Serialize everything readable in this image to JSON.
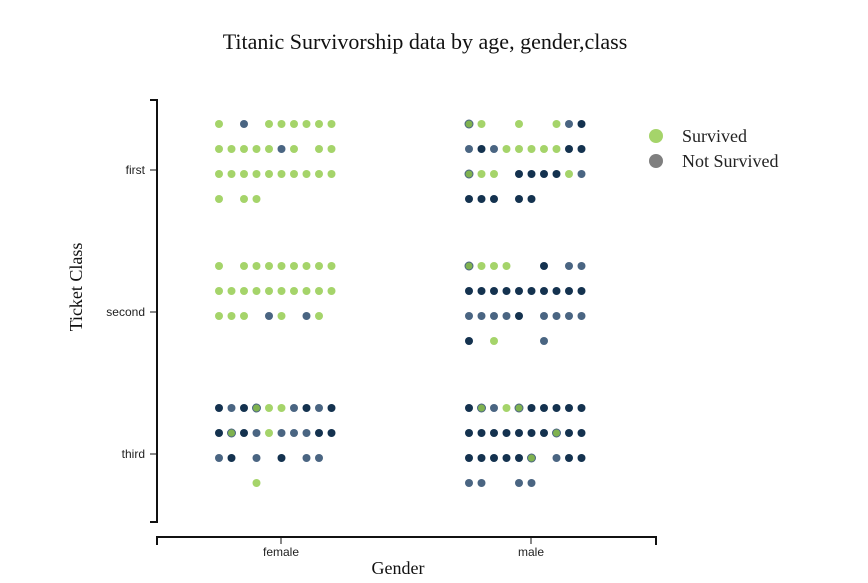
{
  "chart_data": {
    "type": "scatter",
    "title": "Titanic Survivorship data by age, gender,class",
    "xlabel": "Gender",
    "ylabel": "Ticket Class",
    "x_categories": [
      "female",
      "male"
    ],
    "y_categories": [
      "first",
      "second",
      "third"
    ],
    "legend": {
      "placement": "top-right",
      "entries": [
        {
          "label": "Survived",
          "color": "#a5d46a"
        },
        {
          "label": "Not Survived",
          "color": "#7f7f7f"
        }
      ]
    },
    "colors": {
      "survived": "#a5d46a",
      "survived_dark": "#7fb24f",
      "not_survived_light": "#4a6582",
      "not_survived_dark": "#14324f",
      "axis": "#111111"
    },
    "groups": [
      {
        "gender": "female",
        "class": "first",
        "rows": [
          [
            "S",
            "",
            "N",
            "",
            "S",
            "S",
            "S",
            "S",
            "S",
            "S"
          ],
          [
            "S",
            "S",
            "S",
            "S",
            "S",
            "N",
            "S",
            "",
            "S",
            "S"
          ],
          [
            "S",
            "S",
            "S",
            "S",
            "S",
            "S",
            "S",
            "S",
            "S",
            "S"
          ],
          [
            "S",
            "",
            "S",
            "S",
            "",
            "",
            "",
            "",
            "",
            ""
          ]
        ]
      },
      {
        "gender": "male",
        "class": "first",
        "rows": [
          [
            "G",
            "S",
            "",
            "",
            "S",
            "",
            "",
            "S",
            "N",
            "D"
          ],
          [
            "N",
            "D",
            "N",
            "S",
            "S",
            "S",
            "S",
            "S",
            "D",
            "D"
          ],
          [
            "G",
            "S",
            "S",
            "",
            "D",
            "D",
            "D",
            "D",
            "S",
            "N"
          ],
          [
            "D",
            "D",
            "D",
            "",
            "D",
            "D",
            "",
            "",
            "",
            ""
          ]
        ]
      },
      {
        "gender": "female",
        "class": "second",
        "rows": [
          [
            "S",
            "",
            "S",
            "S",
            "S",
            "S",
            "S",
            "S",
            "S",
            "S"
          ],
          [
            "S",
            "S",
            "S",
            "S",
            "S",
            "S",
            "S",
            "S",
            "S",
            "S"
          ],
          [
            "S",
            "S",
            "S",
            "",
            "N",
            "S",
            "",
            "N",
            "S",
            ""
          ]
        ]
      },
      {
        "gender": "male",
        "class": "second",
        "rows": [
          [
            "G",
            "S",
            "S",
            "S",
            "",
            "",
            "D",
            "",
            "N",
            "N"
          ],
          [
            "D",
            "D",
            "D",
            "D",
            "D",
            "D",
            "D",
            "D",
            "D",
            "D"
          ],
          [
            "N",
            "N",
            "N",
            "N",
            "D",
            "",
            "N",
            "N",
            "N",
            "N"
          ],
          [
            "D",
            "",
            "S",
            "",
            "",
            "",
            "N",
            "",
            "",
            ""
          ]
        ]
      },
      {
        "gender": "female",
        "class": "third",
        "rows": [
          [
            "D",
            "N",
            "D",
            "G",
            "S",
            "S",
            "N",
            "D",
            "N",
            "D"
          ],
          [
            "D",
            "G",
            "D",
            "N",
            "S",
            "N",
            "N",
            "N",
            "D",
            "D"
          ],
          [
            "N",
            "D",
            "",
            "N",
            "",
            "D",
            "",
            "N",
            "N",
            ""
          ],
          [
            "",
            "",
            "",
            "S",
            "",
            "",
            "",
            "",
            "",
            ""
          ]
        ]
      },
      {
        "gender": "male",
        "class": "third",
        "rows": [
          [
            "D",
            "G",
            "N",
            "S",
            "G",
            "D",
            "D",
            "D",
            "D",
            "D"
          ],
          [
            "D",
            "D",
            "D",
            "D",
            "D",
            "D",
            "D",
            "G",
            "D",
            "D"
          ],
          [
            "D",
            "D",
            "D",
            "D",
            "D",
            "G",
            "",
            "N",
            "D",
            "D"
          ],
          [
            "N",
            "N",
            "",
            "",
            "N",
            "N",
            "",
            "",
            "",
            ""
          ]
        ]
      }
    ]
  }
}
